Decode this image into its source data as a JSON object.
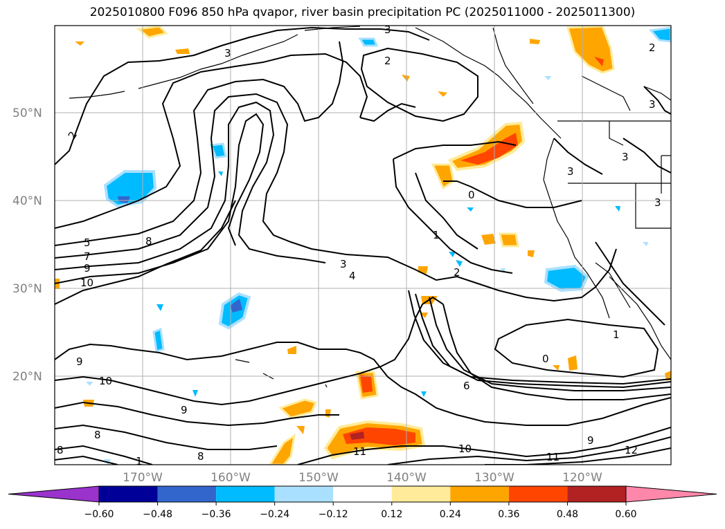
{
  "title": "2025010800 F096 850 hPa qvapor, river basin precipitation PC (2025011000 - 2025011300)",
  "map": {
    "lat_labels": [
      "50°N",
      "40°N",
      "30°N",
      "20°N"
    ],
    "lon_labels": [
      "170°W",
      "160°W",
      "150°W",
      "140°W",
      "130°W",
      "120°W"
    ],
    "contour_labels": [
      "2",
      "3",
      "3",
      "2",
      "3",
      "3",
      "3",
      "3",
      "0",
      "1",
      "2",
      "4",
      "3",
      "5",
      "7",
      "9",
      "10",
      "8",
      "9",
      "10",
      "9",
      "8",
      "8",
      "8",
      "6",
      "10",
      "11",
      "11",
      "9",
      "12",
      "1",
      "0",
      "2",
      "1"
    ]
  },
  "colorbar": {
    "ticks": [
      "−0.60",
      "−0.48",
      "−0.36",
      "−0.24",
      "−0.12",
      "0.12",
      "0.24",
      "0.36",
      "0.48",
      "0.60"
    ],
    "colors": [
      "#9933cc",
      "#000099",
      "#3366cc",
      "#00bbff",
      "#aae0ff",
      "#ffffff",
      "#ffeb99",
      "#ffa500",
      "#ff4500",
      "#b22222",
      "#ff88aa",
      "#ff88aa"
    ]
  }
}
